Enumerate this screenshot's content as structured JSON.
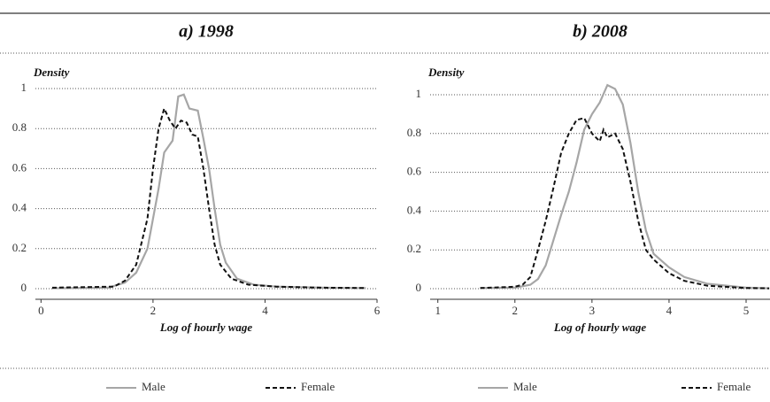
{
  "chart_data": [
    {
      "type": "line",
      "title": "a) 1998",
      "ylabel": "Density",
      "xlabel": "Log of hourly wage",
      "xlim": [
        -0.1,
        6
      ],
      "xticks": [
        0,
        2,
        4,
        6
      ],
      "ylim": [
        0,
        1.1
      ],
      "yticks": [
        0,
        0.2,
        0.4,
        0.6,
        0.8,
        1
      ],
      "grid": true,
      "series": [
        {
          "name": "Male",
          "color": "#a6a6a6",
          "linestyle": "solid",
          "x": [
            0.2,
            1.2,
            1.5,
            1.7,
            1.9,
            2.0,
            2.1,
            2.2,
            2.35,
            2.45,
            2.55,
            2.65,
            2.8,
            2.9,
            3.0,
            3.1,
            3.2,
            3.3,
            3.5,
            3.8,
            4.2,
            5.0,
            5.8
          ],
          "values": [
            0.002,
            0.005,
            0.03,
            0.08,
            0.2,
            0.35,
            0.5,
            0.68,
            0.74,
            0.96,
            0.97,
            0.9,
            0.89,
            0.75,
            0.6,
            0.4,
            0.22,
            0.13,
            0.05,
            0.02,
            0.01,
            0.005,
            0.003
          ]
        },
        {
          "name": "Female",
          "color": "#111111",
          "linestyle": "dashed",
          "x": [
            0.2,
            1.3,
            1.5,
            1.7,
            1.9,
            2.0,
            2.1,
            2.2,
            2.3,
            2.4,
            2.5,
            2.6,
            2.7,
            2.8,
            2.9,
            3.0,
            3.1,
            3.2,
            3.4,
            3.7,
            4.2,
            5.0,
            5.8
          ],
          "values": [
            0.005,
            0.01,
            0.04,
            0.12,
            0.35,
            0.6,
            0.8,
            0.9,
            0.84,
            0.8,
            0.84,
            0.83,
            0.77,
            0.76,
            0.6,
            0.4,
            0.22,
            0.12,
            0.05,
            0.02,
            0.01,
            0.005,
            0.003
          ]
        }
      ]
    },
    {
      "type": "line",
      "title": "b) 2008",
      "ylabel": "Density",
      "xlabel": "Log of hourly wage",
      "xlim": [
        0.9,
        5.31
      ],
      "xticks": [
        1,
        2,
        3,
        4,
        5
      ],
      "ylim": [
        0,
        1.1
      ],
      "yticks": [
        0,
        0.2,
        0.4,
        0.6,
        0.8,
        1
      ],
      "grid": true,
      "series": [
        {
          "name": "Male",
          "color": "#a6a6a6",
          "linestyle": "solid",
          "x": [
            1.55,
            2.0,
            2.2,
            2.3,
            2.4,
            2.5,
            2.6,
            2.7,
            2.8,
            2.9,
            3.0,
            3.1,
            3.2,
            3.3,
            3.4,
            3.5,
            3.6,
            3.7,
            3.8,
            4.0,
            4.2,
            4.5,
            5.0,
            5.3
          ],
          "values": [
            0.003,
            0.005,
            0.02,
            0.05,
            0.12,
            0.25,
            0.38,
            0.5,
            0.65,
            0.82,
            0.9,
            0.96,
            1.05,
            1.03,
            0.95,
            0.75,
            0.5,
            0.3,
            0.18,
            0.11,
            0.06,
            0.025,
            0.005,
            0.002
          ]
        },
        {
          "name": "Female",
          "color": "#111111",
          "linestyle": "dashed",
          "x": [
            1.55,
            2.0,
            2.1,
            2.2,
            2.3,
            2.4,
            2.5,
            2.6,
            2.7,
            2.8,
            2.9,
            3.0,
            3.1,
            3.15,
            3.2,
            3.3,
            3.4,
            3.5,
            3.6,
            3.7,
            3.8,
            4.0,
            4.2,
            4.5,
            5.0,
            5.3
          ],
          "values": [
            0.003,
            0.01,
            0.02,
            0.06,
            0.2,
            0.35,
            0.52,
            0.7,
            0.8,
            0.87,
            0.88,
            0.8,
            0.76,
            0.82,
            0.78,
            0.8,
            0.72,
            0.55,
            0.35,
            0.2,
            0.15,
            0.08,
            0.04,
            0.015,
            0.003,
            0.002
          ]
        }
      ]
    }
  ]
}
